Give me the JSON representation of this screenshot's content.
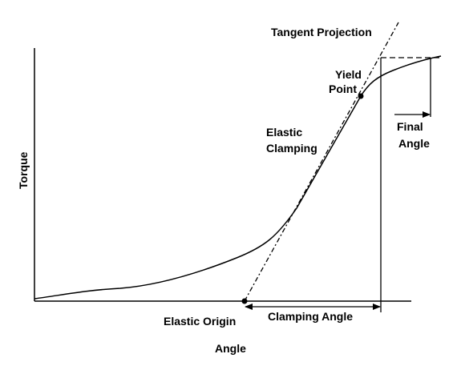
{
  "labels": {
    "tangent_projection": "Tangent Projection",
    "yield_point": [
      "Yield",
      "Point"
    ],
    "elastic_clamping": [
      "Elastic",
      "Clamping"
    ],
    "final_angle": [
      "Final",
      "Angle"
    ],
    "elastic_origin": "Elastic Origin",
    "clamping_angle": "Clamping Angle",
    "x_axis": "Angle",
    "y_axis": "Torque"
  },
  "colors": {
    "ink": "#000000",
    "background": "#ffffff"
  }
}
